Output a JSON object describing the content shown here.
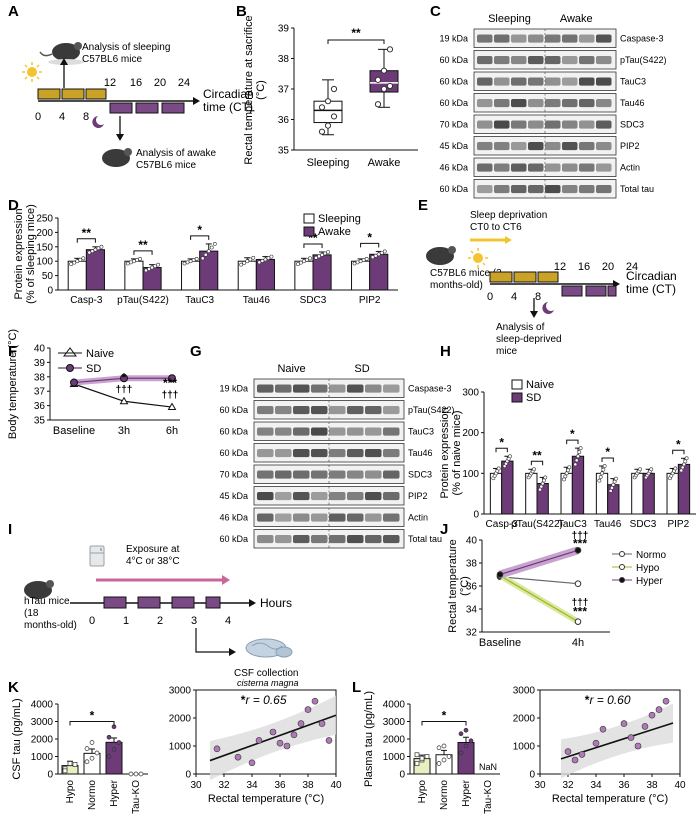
{
  "panel_labels": [
    "A",
    "B",
    "C",
    "D",
    "E",
    "F",
    "G",
    "H",
    "I",
    "J",
    "K",
    "L"
  ],
  "colors": {
    "purple": "#6d3b78",
    "purple_light": "#c9a3cf",
    "gold": "#c9a227",
    "green_light": "#e8efc0",
    "light_fill": "#eeeeee"
  },
  "icons": [
    "mouse-icon",
    "sun-icon",
    "moon-icon",
    "fridge-icon",
    "brain-icon"
  ],
  "panel_a": {
    "analysis_sleep": "Analysis of sleeping C57BL6 mice",
    "analysis_awake": "Analysis of awake C57BL6 mice",
    "axis_title": "Circadian time (CT)",
    "ticks": [
      "0",
      "4",
      "8",
      "12",
      "16",
      "20",
      "24"
    ]
  },
  "panel_e": {
    "sd_label": "Sleep deprivation CT0 to CT6",
    "mouse_label": "C57BL6 mice (3 months-old)",
    "analysis": "Analysis of sleep-deprived mice",
    "axis_title": "Circadian time (CT)",
    "ticks": [
      "0",
      "4",
      "8",
      "12",
      "16",
      "20",
      "24"
    ]
  },
  "panel_i": {
    "exposure": "Exposure at 4°C or 38°C",
    "mouse_label": "hTau mice (18 months-old)",
    "axis_title": "Hours",
    "ticks": [
      "0",
      "1",
      "2",
      "3",
      "4"
    ],
    "csf_collection": "CSF collection",
    "csf_site": "cisterna magna"
  },
  "blot_c": {
    "groups": [
      "Sleeping",
      "Awake"
    ],
    "rows": [
      {
        "kda": "19 kDa",
        "name": "Caspase-3"
      },
      {
        "kda": "60 kDa",
        "name": "pTau(S422)"
      },
      {
        "kda": "60 kDa",
        "name": "TauC3"
      },
      {
        "kda": "60 kDa",
        "name": "Tau46"
      },
      {
        "kda": "70 kDa",
        "name": "SDC3"
      },
      {
        "kda": "45 kDa",
        "name": "PIP2"
      },
      {
        "kda": "46 kDa",
        "name": "Actin"
      },
      {
        "kda": "60 kDa",
        "name": "Total tau"
      }
    ]
  },
  "blot_g": {
    "groups": [
      "Naive",
      "SD"
    ],
    "rows": [
      {
        "kda": "19 kDa",
        "name": "Caspase-3"
      },
      {
        "kda": "60 kDa",
        "name": "pTau(S422)"
      },
      {
        "kda": "60 kDa",
        "name": "TauC3"
      },
      {
        "kda": "60 kDa",
        "name": "Tau46"
      },
      {
        "kda": "70 kDa",
        "name": "SDC3"
      },
      {
        "kda": "45 kDa",
        "name": "PIP2"
      },
      {
        "kda": "46 kDa",
        "name": "Actin"
      },
      {
        "kda": "60 kDa",
        "name": "Total tau"
      }
    ]
  },
  "chart_data": [
    {
      "id": "B",
      "type": "box",
      "ylabel": "Rectal temperature at sacrifice (°C)",
      "categories": [
        "Sleeping",
        "Awake"
      ],
      "ylim": [
        35,
        39
      ],
      "yticks": [
        35,
        36,
        37,
        38,
        39
      ],
      "boxes": [
        {
          "min": 35.5,
          "q1": 35.9,
          "median": 36.3,
          "q3": 36.6,
          "max": 37.3
        },
        {
          "min": 36.4,
          "q1": 36.9,
          "median": 37.2,
          "q3": 37.6,
          "max": 38.3
        }
      ],
      "points": [
        [
          35.6,
          35.8,
          36.1,
          36.4,
          36.6,
          37.0
        ],
        [
          36.5,
          37.0,
          37.1,
          37.3,
          37.6,
          38.3
        ]
      ],
      "annotation": "**"
    },
    {
      "id": "D",
      "type": "bar",
      "ylabel": "Protein expression (% of sleeping mice)",
      "categories": [
        "Casp-3",
        "pTau(S422)",
        "TauC3",
        "Tau46",
        "SDC3",
        "PIP2"
      ],
      "series": [
        {
          "name": "Sleeping",
          "values": [
            100,
            100,
            100,
            100,
            100,
            100
          ],
          "errors": [
            10,
            8,
            8,
            12,
            10,
            8
          ]
        },
        {
          "name": "Awake",
          "values": [
            140,
            78,
            135,
            106,
            122,
            124
          ],
          "errors": [
            10,
            10,
            25,
            10,
            10,
            10
          ]
        }
      ],
      "ylim": [
        0,
        250
      ],
      "yticks": [
        0,
        50,
        100,
        150,
        200,
        250
      ],
      "significance": [
        "**",
        "**",
        "*",
        "",
        "**",
        "*"
      ],
      "legend": "top-right"
    },
    {
      "id": "F",
      "type": "line",
      "ylabel": "Body temperature (°C)",
      "categories": [
        "Baseline",
        "3h",
        "6h"
      ],
      "series": [
        {
          "name": "Naive",
          "values": [
            37.5,
            36.3,
            35.9
          ]
        },
        {
          "name": "SD",
          "values": [
            37.6,
            37.9,
            37.9
          ]
        }
      ],
      "ylim": [
        35,
        40
      ],
      "yticks": [
        35,
        36,
        37,
        38,
        39,
        40
      ],
      "annotations": [
        {
          "x": "3h",
          "text": "*"
        },
        {
          "x": "3h",
          "text": "†††"
        },
        {
          "x": "6h",
          "text": "***"
        },
        {
          "x": "6h",
          "text": "†††"
        }
      ],
      "legend": "top-left"
    },
    {
      "id": "H",
      "type": "bar",
      "ylabel": "Protein expression (% of naive mice)",
      "categories": [
        "Casp-3",
        "pTau(S422)",
        "TauC3",
        "Tau46",
        "SDC3",
        "PIP2"
      ],
      "series": [
        {
          "name": "Naive",
          "values": [
            100,
            100,
            100,
            100,
            100,
            100
          ],
          "errors": [
            12,
            10,
            15,
            18,
            10,
            12
          ]
        },
        {
          "name": "SD",
          "values": [
            130,
            75,
            142,
            72,
            100,
            122
          ],
          "errors": [
            12,
            15,
            20,
            15,
            10,
            15
          ]
        }
      ],
      "ylim": [
        0,
        300
      ],
      "yticks": [
        0,
        100,
        200,
        300
      ],
      "significance": [
        "*",
        "**",
        "*",
        "*",
        "",
        "*"
      ],
      "legend": "top-left"
    },
    {
      "id": "J",
      "type": "line",
      "ylabel": "Rectal temperature (°C)",
      "categories": [
        "Baseline",
        "4h"
      ],
      "series": [
        {
          "name": "Normo",
          "values": [
            36.8,
            36.2
          ]
        },
        {
          "name": "Hypo",
          "values": [
            36.9,
            32.9
          ]
        },
        {
          "name": "Hyper",
          "values": [
            37.0,
            39.1
          ]
        }
      ],
      "ylim": [
        32,
        40
      ],
      "yticks": [
        32,
        34,
        36,
        38,
        40
      ],
      "annotations": [
        {
          "x": "4h",
          "text": "†††"
        },
        {
          "x": "4h",
          "text": "***"
        },
        {
          "x": "4h",
          "text": "†††"
        },
        {
          "x": "4h",
          "text": "***"
        }
      ],
      "legend": "right"
    },
    {
      "id": "K-bar",
      "type": "bar",
      "ylabel": "CSF tau (pg/mL)",
      "categories": [
        "Hypo",
        "Normo",
        "Hyper",
        "Tau-KO"
      ],
      "values": [
        480,
        1180,
        1810,
        0
      ],
      "errors": [
        250,
        250,
        250,
        0
      ],
      "points": [
        [
          300,
          600,
          550,
          180
        ],
        [
          700,
          900,
          1200,
          1450,
          1800
        ],
        [
          1000,
          1400,
          1800,
          2100,
          2700
        ],
        [
          0,
          0,
          0
        ]
      ],
      "ylim": [
        0,
        4000
      ],
      "yticks": [
        0,
        1000,
        2000,
        3000,
        4000
      ],
      "annotation": "*"
    },
    {
      "id": "K-scatter",
      "type": "scatter",
      "xlabel": "Rectal temperature (°C)",
      "annotation": "r = 0.65",
      "annotation_mark": "*",
      "x": [
        31.5,
        33.0,
        34.0,
        34.5,
        35.5,
        36.0,
        36.5,
        37.0,
        37.5,
        38.0,
        38.5,
        39.0,
        39.5
      ],
      "y": [
        900,
        600,
        400,
        1200,
        1500,
        1100,
        1000,
        1400,
        1800,
        2300,
        2600,
        1800,
        1200
      ],
      "xlim": [
        30,
        40
      ],
      "ylim": [
        0,
        3000
      ],
      "xticks": [
        30,
        32,
        34,
        36,
        38,
        40
      ],
      "yticks": [
        0,
        1000,
        2000,
        3000
      ],
      "fit": {
        "slope": 180,
        "intercept": -5100
      }
    },
    {
      "id": "L-bar",
      "type": "bar",
      "ylabel": "Plasma tau (pg/mL)",
      "categories": [
        "Hypo",
        "Normo",
        "Hyper",
        "Tau-KO"
      ],
      "values": [
        880,
        1100,
        1800,
        null
      ],
      "value_labels": [
        "",
        "",
        "",
        "NaN"
      ],
      "errors": [
        200,
        250,
        300,
        0
      ],
      "points": [
        [
          600,
          800,
          1000,
          1100,
          900
        ],
        [
          600,
          800,
          1000,
          1500,
          1600
        ],
        [
          1200,
          1600,
          1900,
          2300,
          2500
        ],
        []
      ],
      "ylim": [
        0,
        4000
      ],
      "yticks": [
        0,
        1000,
        2000,
        3000,
        4000
      ],
      "annotation": "*"
    },
    {
      "id": "L-scatter",
      "type": "scatter",
      "xlabel": "Rectal temperature (°C)",
      "annotation": "r = 0.60",
      "annotation_mark": "*",
      "x": [
        32.0,
        32.5,
        33.0,
        34.0,
        34.5,
        36.0,
        36.5,
        37.0,
        37.5,
        38.0,
        38.5,
        39.0
      ],
      "y": [
        800,
        500,
        700,
        1100,
        1600,
        1800,
        1300,
        1000,
        1700,
        2100,
        2300,
        2600
      ],
      "xlim": [
        30,
        40
      ],
      "ylim": [
        0,
        3000
      ],
      "xticks": [
        30,
        32,
        34,
        36,
        38,
        40
      ],
      "yticks": [
        0,
        1000,
        2000,
        3000
      ],
      "fit": {
        "slope": 160,
        "intercept": -4500
      }
    }
  ]
}
